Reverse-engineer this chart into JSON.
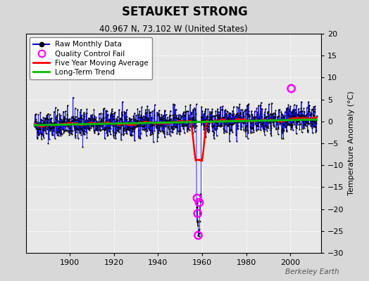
{
  "title": "SETAUKET STRONG",
  "subtitle": "40.967 N, 73.102 W (United States)",
  "ylabel": "Temperature Anomaly (°C)",
  "watermark": "Berkeley Earth",
  "xlim": [
    1880,
    2014
  ],
  "ylim": [
    -30,
    20
  ],
  "yticks": [
    -30,
    -25,
    -20,
    -15,
    -10,
    -5,
    0,
    5,
    10,
    15,
    20
  ],
  "xticks": [
    1900,
    1920,
    1940,
    1960,
    1980,
    2000
  ],
  "bg_color": "#d8d8d8",
  "plot_bg_color": "#e8e8e8",
  "raw_color": "#0000dd",
  "raw_dot_color": "#000000",
  "qc_color": "#ff00ff",
  "moving_avg_color": "#ff0000",
  "trend_color": "#00bb00",
  "seed": 42,
  "x_start": 1884,
  "x_end": 2012,
  "trend_slope": 0.01,
  "trend_start_year": 1940,
  "trend_intercept": -0.3,
  "noise_std": 1.6,
  "qc_fail_times": [
    1957.75,
    1958.0,
    1958.25,
    1958.75,
    2000.5
  ],
  "qc_fail_values": [
    -17.5,
    -21.0,
    -26.0,
    -18.5,
    7.5
  ],
  "anomaly_start": 1957.5,
  "anomaly_end": 1959.5
}
